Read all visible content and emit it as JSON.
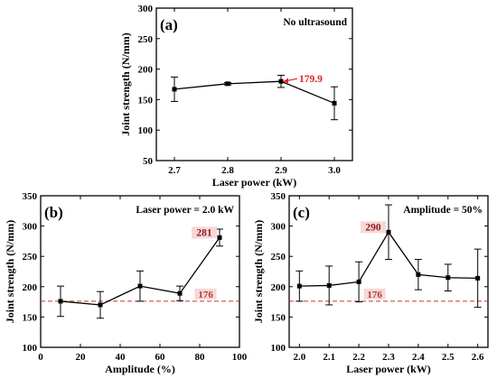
{
  "chart_data": [
    {
      "id": "a",
      "type": "line",
      "panel_label": "(a)",
      "annotation": "No ultrasound",
      "xlabel": "Laser power (kW)",
      "ylabel": "Joint strength (N/mm)",
      "x": [
        2.7,
        2.8,
        2.9,
        3.0
      ],
      "x_ticks": [
        "2.7",
        "2.8",
        "2.9",
        "3.0"
      ],
      "ylim": [
        50,
        300
      ],
      "y_ticks": [
        50,
        100,
        150,
        200,
        250,
        300
      ],
      "values": [
        167,
        176,
        179.9,
        144
      ],
      "errors": [
        20,
        2,
        10,
        27
      ],
      "value_label": {
        "index": 2,
        "text": "179.9",
        "color": "#e0202a",
        "arrow": true
      },
      "ref_line": null
    },
    {
      "id": "b",
      "type": "line",
      "panel_label": "(b)",
      "annotation": "Laser power = 2.0 kW",
      "xlabel": "Amplitude (%)",
      "ylabel": "Joint strength (N/mm)",
      "x": [
        10,
        30,
        50,
        70,
        90
      ],
      "x_ticks": [
        "0",
        "20",
        "40",
        "60",
        "80",
        "100"
      ],
      "xlim": [
        0,
        100
      ],
      "ylim": [
        100,
        350
      ],
      "y_ticks": [
        100,
        150,
        200,
        250,
        300,
        350
      ],
      "values": [
        176,
        170,
        201,
        189,
        281
      ],
      "errors": [
        25,
        22,
        25,
        12,
        14
      ],
      "value_label": {
        "index": 4,
        "text": "281",
        "color": "#8b1a1a",
        "arrow": false
      },
      "ref_line": {
        "value": 176,
        "label": "176",
        "color": "#c0392b"
      }
    },
    {
      "id": "c",
      "type": "line",
      "panel_label": "(c)",
      "annotation": "Amplitude = 50%",
      "xlabel": "Laser power (kW)",
      "ylabel": "Joint strength (N/mm)",
      "x": [
        2.0,
        2.1,
        2.2,
        2.3,
        2.4,
        2.5,
        2.6
      ],
      "x_ticks": [
        "2.0",
        "2.1",
        "2.2",
        "2.3",
        "2.4",
        "2.5",
        "2.6"
      ],
      "ylim": [
        100,
        350
      ],
      "y_ticks": [
        100,
        150,
        200,
        250,
        300,
        350
      ],
      "values": [
        201,
        202,
        208,
        290,
        220,
        215,
        214
      ],
      "errors": [
        25,
        32,
        33,
        45,
        25,
        22,
        48
      ],
      "value_label": {
        "index": 3,
        "text": "290",
        "color": "#8b1a1a",
        "arrow": false
      },
      "ref_line": {
        "value": 176,
        "label": "176",
        "color": "#c0392b"
      }
    }
  ]
}
